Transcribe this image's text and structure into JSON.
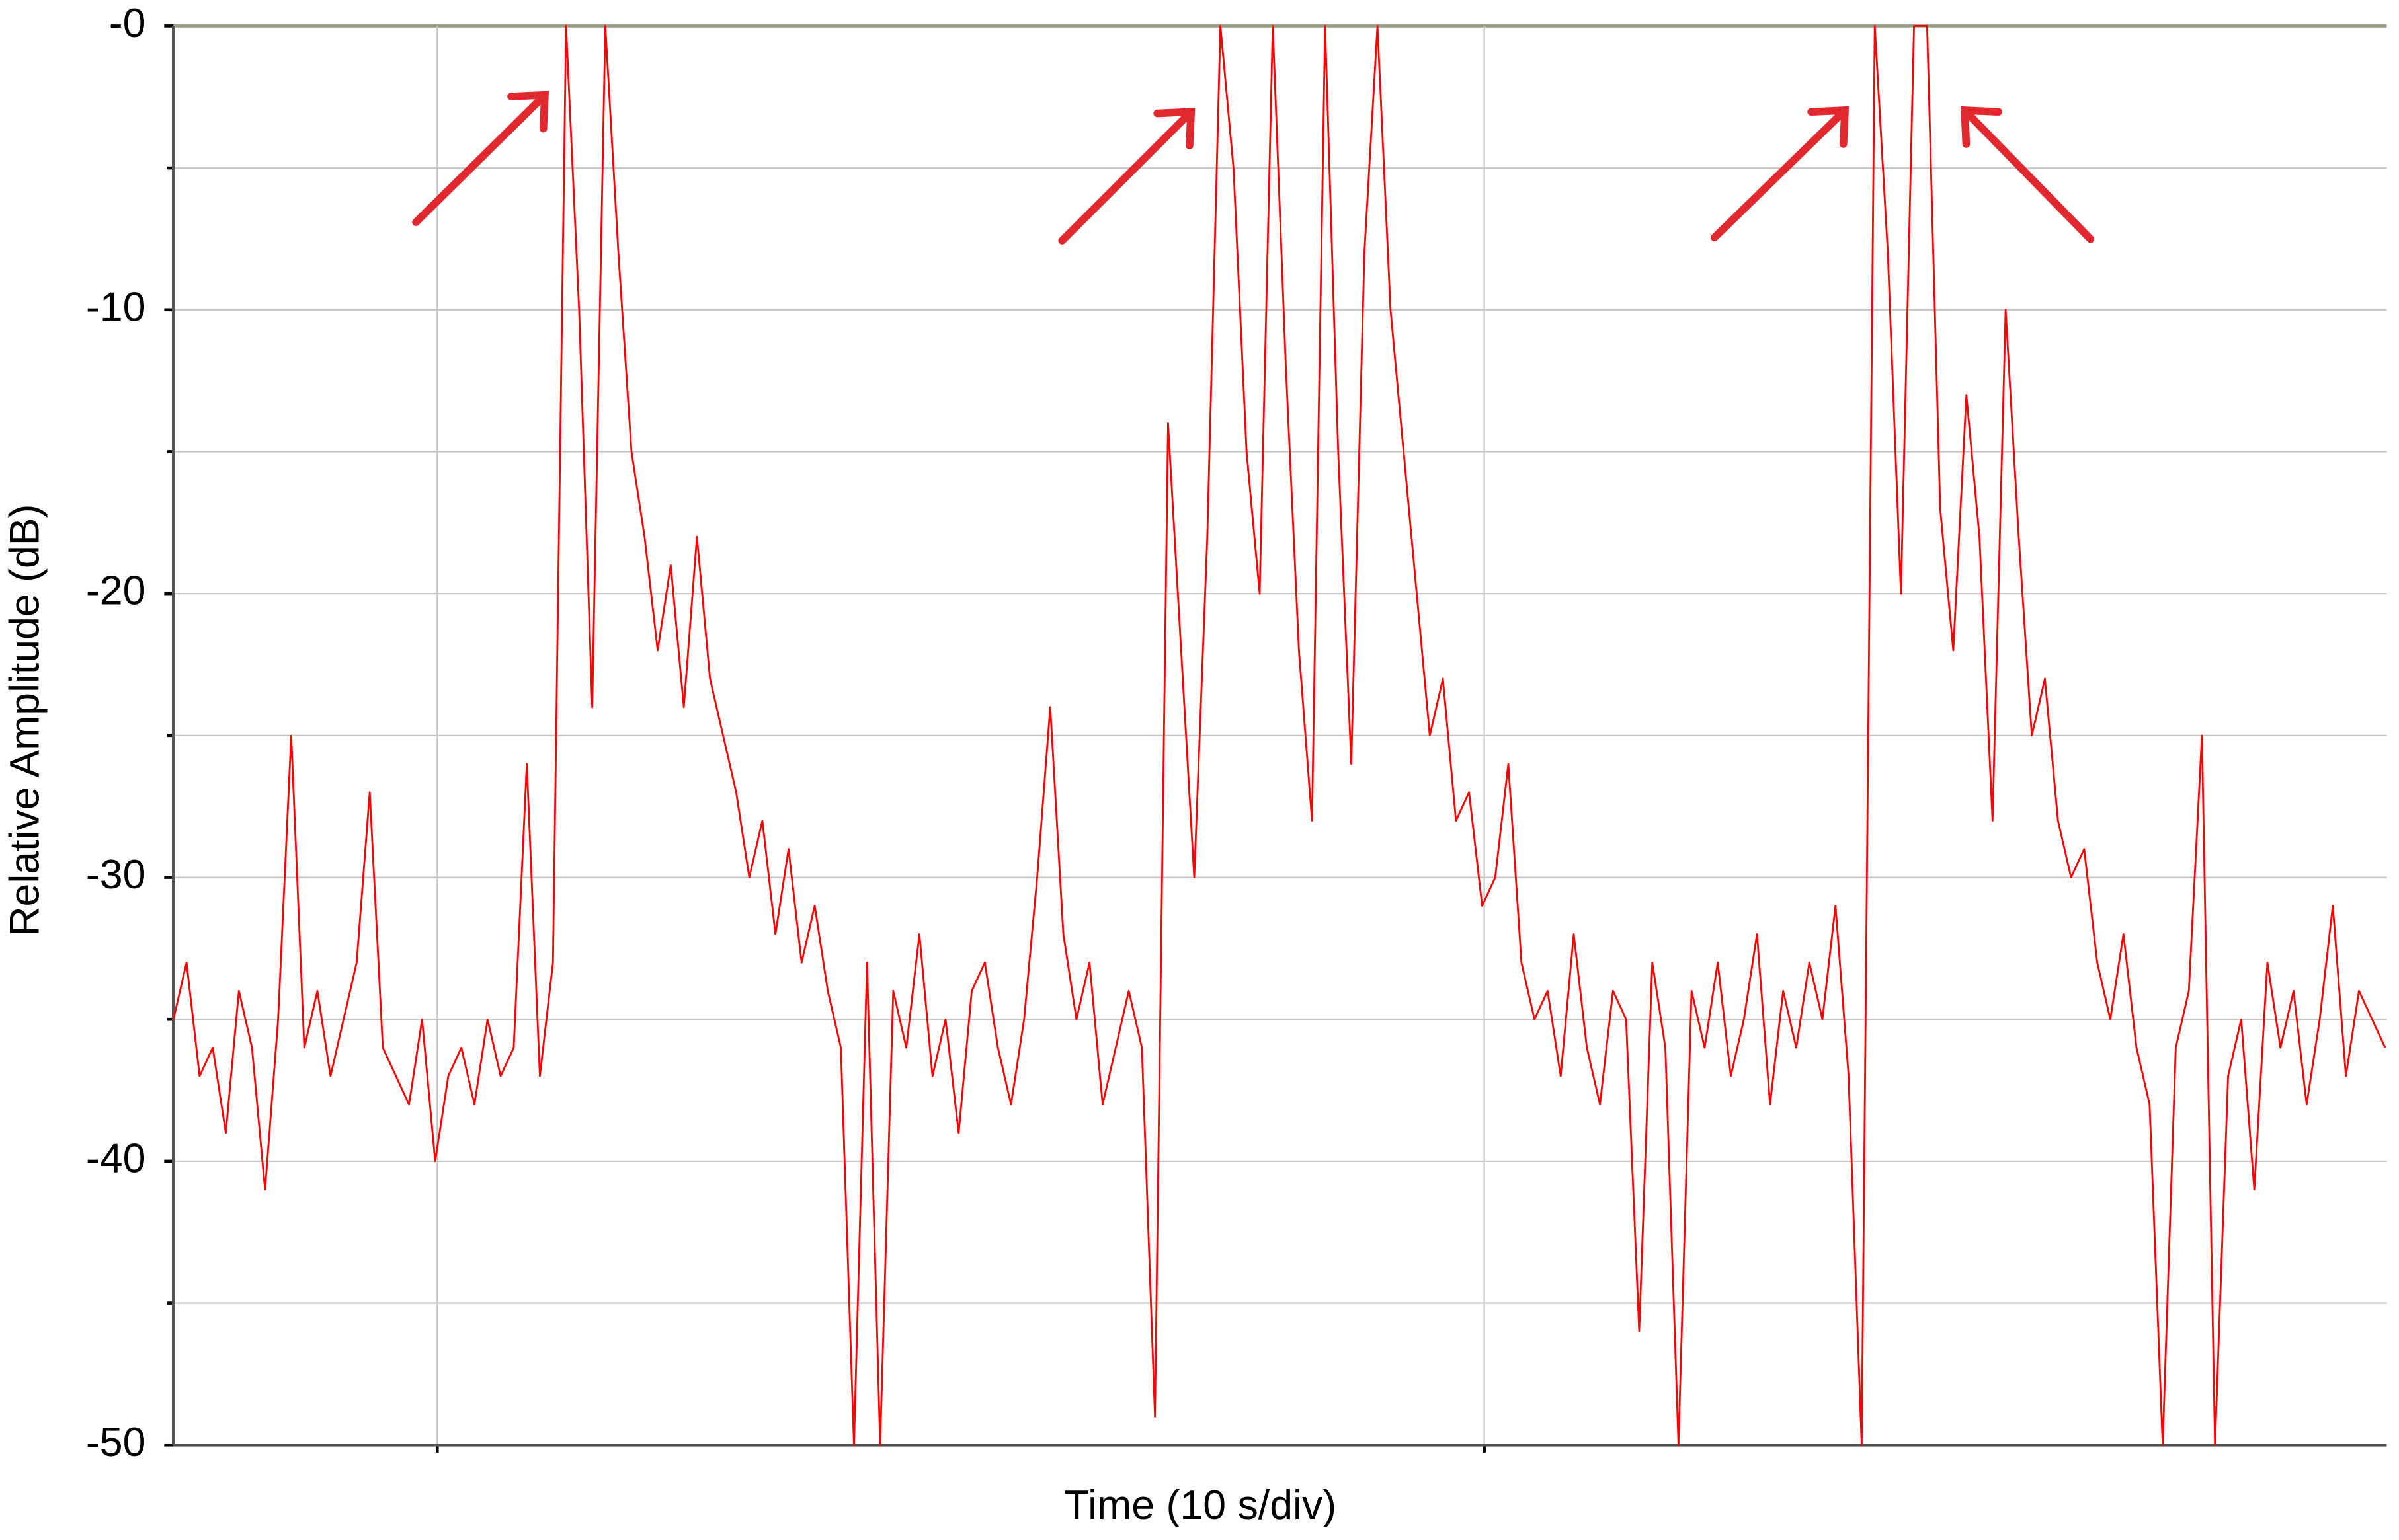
{
  "chart_data": {
    "type": "line",
    "x_label": "Time (10 s/div)",
    "y_label": "Relative Amplitude (dB)",
    "x": [
      0,
      0.125,
      0.25,
      0.375,
      0.5,
      0.625,
      0.75,
      0.875,
      1,
      1.125,
      1.25,
      1.375,
      1.5,
      1.625,
      1.75,
      1.875,
      2,
      2.125,
      2.25,
      2.375,
      2.5,
      2.625,
      2.75,
      2.875,
      3,
      3.125,
      3.25,
      3.375,
      3.5,
      3.625,
      3.75,
      3.875,
      4,
      4.125,
      4.25,
      4.375,
      4.5,
      4.625,
      4.75,
      4.875,
      5,
      5.125,
      5.25,
      5.375,
      5.5,
      5.625,
      5.75,
      5.875,
      6,
      6.125,
      6.25,
      6.375,
      6.5,
      6.625,
      6.75,
      6.875,
      7,
      7.125,
      7.25,
      7.375,
      7.5,
      7.625,
      7.75,
      7.875,
      8,
      8.125,
      8.25,
      8.375,
      8.5,
      8.625,
      8.75,
      8.875,
      9,
      9.125,
      9.25,
      9.375,
      9.5,
      9.625,
      9.75,
      9.875,
      10,
      10.125,
      10.25,
      10.375,
      10.5,
      10.625,
      10.75,
      10.875,
      11,
      11.125,
      11.25,
      11.375,
      11.5,
      11.625,
      11.75,
      11.875,
      12,
      12.125,
      12.25,
      12.375,
      12.5,
      12.625,
      12.75,
      12.875,
      13,
      13.125,
      13.25,
      13.375,
      13.5,
      13.625,
      13.75,
      13.875,
      14,
      14.125,
      14.25,
      14.375,
      14.5,
      14.625,
      14.75,
      14.875,
      15,
      15.125,
      15.25,
      15.375,
      15.5,
      15.625,
      15.75,
      15.875,
      16,
      16.125,
      16.25,
      16.375,
      16.5,
      16.625,
      16.75,
      16.875,
      17,
      17.125,
      17.25,
      17.375,
      17.5,
      17.625,
      17.75,
      17.875,
      18,
      18.125,
      18.25,
      18.375,
      18.5,
      18.625,
      18.75,
      18.875,
      19,
      19.125,
      19.25,
      19.375,
      19.5,
      19.625,
      19.75,
      19.875,
      20,
      20.125,
      20.25,
      20.375,
      20.5,
      20.625,
      20.75,
      20.875,
      21,
      21.125
    ],
    "series": [
      {
        "color": "#ff0000",
        "values": [
          -35,
          -33,
          -37,
          -36,
          -39,
          -34,
          -36,
          -41,
          -35,
          -25,
          -36,
          -34,
          -37,
          -35,
          -33,
          -27,
          -36,
          -37,
          -38,
          -35,
          -40,
          -37,
          -36,
          -38,
          -35,
          -37,
          -36,
          -26,
          -37,
          -33,
          0,
          -10,
          -24,
          0,
          -8,
          -15,
          -18,
          -22,
          -19,
          -24,
          -18,
          -23,
          -25,
          -27,
          -30,
          -28,
          -32,
          -29,
          -33,
          -31,
          -34,
          -36,
          -50,
          -33,
          -50,
          -34,
          -36,
          -32,
          -37,
          -35,
          -39,
          -34,
          -33,
          -36,
          -38,
          -35,
          -30,
          -24,
          -32,
          -35,
          -33,
          -38,
          -36,
          -34,
          -36,
          -49,
          -14,
          -22,
          -30,
          -18,
          0,
          -5,
          -15,
          -20,
          0,
          -12,
          -22,
          -28,
          0,
          -15,
          -26,
          -8,
          0,
          -10,
          -15,
          -20,
          -25,
          -23,
          -28,
          -27,
          -31,
          -30,
          -26,
          -33,
          -35,
          -34,
          -37,
          -32,
          -36,
          -38,
          -34,
          -35,
          -46,
          -33,
          -36,
          -50,
          -34,
          -36,
          -33,
          -37,
          -35,
          -32,
          -38,
          -34,
          -36,
          -33,
          -35,
          -31,
          -37,
          -50,
          0,
          -8,
          -20,
          0,
          0,
          -17,
          -22,
          -13,
          -18,
          -28,
          -10,
          -18,
          -25,
          -23,
          -28,
          -30,
          -29,
          -33,
          -35,
          -32,
          -36,
          -38,
          -50,
          -36,
          -34,
          -25,
          -50,
          -37,
          -35,
          -41,
          -33,
          -36,
          -34,
          -38,
          -35,
          -31,
          -37,
          -34,
          -35,
          -36
        ]
      }
    ],
    "xlim": [
      0,
      21.14
    ],
    "xgrid": [
      2.52,
      12.52
    ],
    "ylim": [
      -50,
      0
    ],
    "yticks": [
      {
        "value": 0,
        "label": "-0"
      },
      -10,
      -20,
      -30,
      -40,
      -50
    ],
    "yminor": [
      -5,
      -15,
      -25,
      -35,
      -45
    ],
    "grid": true
  }
}
